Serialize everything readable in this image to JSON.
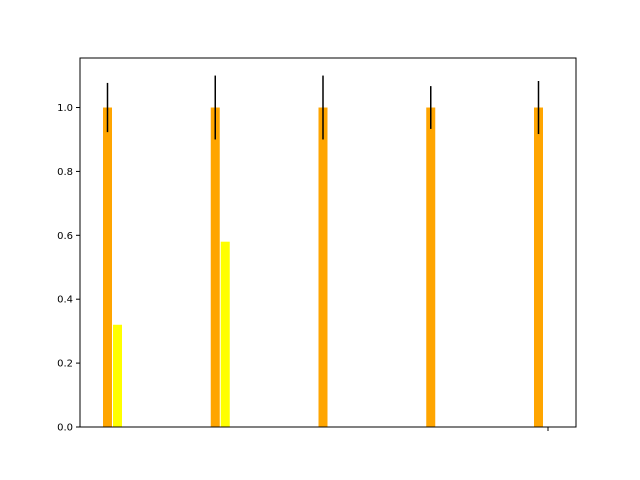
{
  "chart_data": {
    "type": "bar",
    "categories": [
      "",
      "",
      "",
      "",
      ""
    ],
    "series": [
      {
        "color": "#ffa500",
        "values": [
          1.0,
          1.0,
          1.0,
          1.0,
          1.0
        ],
        "errors": [
          0.077,
          0.1,
          0.1,
          0.067,
          0.083
        ]
      },
      {
        "color": "#ffff00",
        "values": [
          0.32,
          0.58,
          0.0,
          0.0,
          0.0
        ]
      }
    ],
    "ylim": [
      0,
      1.155
    ],
    "yticks": [
      "0.0",
      "0.2",
      "0.4",
      "0.6",
      "0.8",
      "1.0"
    ],
    "grid": false,
    "legend": false,
    "title": "",
    "xlabel": "",
    "ylabel": ""
  }
}
